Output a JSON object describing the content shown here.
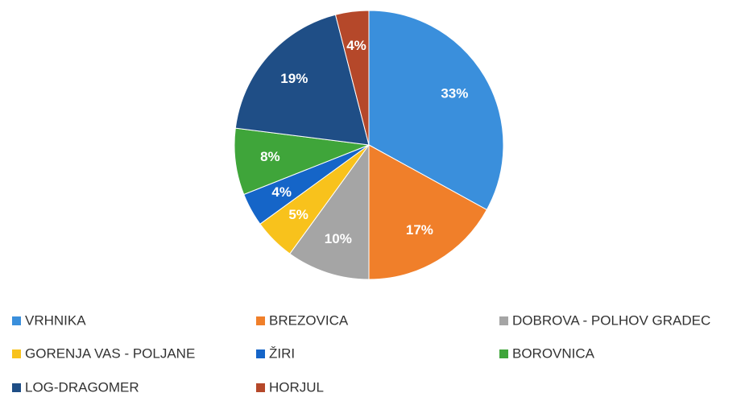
{
  "chart_data": {
    "type": "pie",
    "categories": [
      "VRHNIKA",
      "BREZOVICA",
      "DOBROVA - POLHOV GRADEC",
      "GORENJA VAS - POLJANE",
      "ŽIRI",
      "BOROVNICA",
      "LOG-DRAGOMER",
      "HORJUL"
    ],
    "values": [
      33,
      17,
      10,
      5,
      4,
      8,
      19,
      4
    ],
    "value_labels": [
      "33%",
      "17%",
      "10%",
      "5%",
      "4%",
      "8%",
      "19%",
      "4%"
    ],
    "colors": [
      "#3a8fdc",
      "#f07f2a",
      "#a5a5a5",
      "#f8c21c",
      "#1565c8",
      "#3fa53a",
      "#1f4e86",
      "#b5482a"
    ],
    "legend": "bottom"
  }
}
